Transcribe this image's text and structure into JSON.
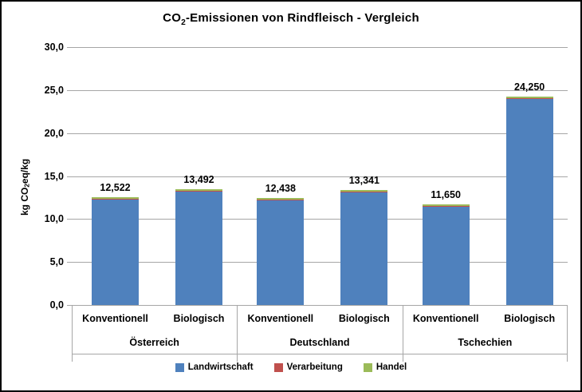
{
  "title": {
    "prefix": "CO",
    "sub": "2",
    "rest": "-Emissionen von Rindfleisch - Vergleich"
  },
  "y_axis": {
    "title_prefix": "kg CO",
    "title_sub": "2",
    "title_rest": "eq/kg"
  },
  "chart_data": {
    "type": "bar",
    "stacked": true,
    "title": "CO2-Emissionen von Rindfleisch - Vergleich",
    "ylabel": "kg CO2eq/kg",
    "ylim": [
      0,
      30
    ],
    "grid": true,
    "legend_position": "bottom",
    "yticks": [
      {
        "value": 0,
        "label": "0,0"
      },
      {
        "value": 5,
        "label": "5,0"
      },
      {
        "value": 10,
        "label": "10,0"
      },
      {
        "value": 15,
        "label": "15,0"
      },
      {
        "value": 20,
        "label": "20,0"
      },
      {
        "value": 25,
        "label": "25,0"
      },
      {
        "value": 30,
        "label": "30,0"
      }
    ],
    "series": [
      {
        "name": "Landwirtschaft",
        "color": "#4F81BD"
      },
      {
        "name": "Verarbeitung",
        "color": "#C0504D"
      },
      {
        "name": "Handel",
        "color": "#9BBB59"
      }
    ],
    "segment_estimates": {
      "verarbeitung": 0.1,
      "handel": 0.16
    },
    "groups": [
      {
        "country": "Österreich",
        "bars": [
          {
            "label": "Konventionell",
            "total": 12.522,
            "total_label": "12,522"
          },
          {
            "label": "Biologisch",
            "total": 13.492,
            "total_label": "13,492"
          }
        ]
      },
      {
        "country": "Deutschland",
        "bars": [
          {
            "label": "Konventionell",
            "total": 12.438,
            "total_label": "12,438"
          },
          {
            "label": "Biologisch",
            "total": 13.341,
            "total_label": "13,341"
          }
        ]
      },
      {
        "country": "Tschechien",
        "bars": [
          {
            "label": "Konventionell",
            "total": 11.65,
            "total_label": "11,650"
          },
          {
            "label": "Biologisch",
            "total": 24.25,
            "total_label": "24,250"
          }
        ]
      }
    ]
  }
}
